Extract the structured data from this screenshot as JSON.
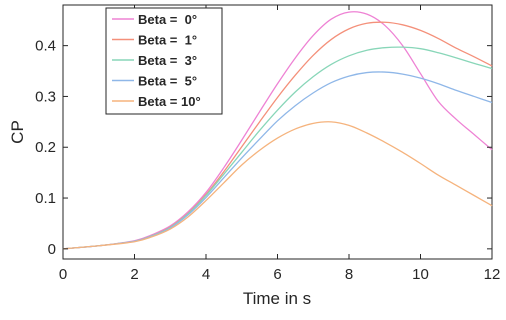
{
  "chart_data": {
    "type": "line",
    "title": "",
    "xlabel": "Time in s",
    "ylabel": "CP",
    "xlim": [
      0,
      12
    ],
    "ylim": [
      -0.02,
      0.48
    ],
    "xticks": [
      0,
      2,
      4,
      6,
      8,
      10,
      12
    ],
    "yticks": [
      0,
      0.1,
      0.2,
      0.3,
      0.4
    ],
    "ytick_labels": [
      "0",
      "0.1",
      "0.2",
      "0.3",
      "0.4"
    ],
    "grid": false,
    "legend_position": "top-left",
    "x": [
      0,
      1,
      2,
      2.5,
      3,
      3.5,
      4,
      4.5,
      5,
      5.5,
      6,
      6.5,
      7,
      7.5,
      8,
      8.5,
      9,
      9.5,
      10,
      10.5,
      11,
      11.5,
      12
    ],
    "series": [
      {
        "name": "Beta =  0°",
        "color": "#ee82d4",
        "values": [
          0,
          0.006,
          0.016,
          0.028,
          0.045,
          0.073,
          0.111,
          0.16,
          0.214,
          0.27,
          0.325,
          0.376,
          0.42,
          0.452,
          0.466,
          0.462,
          0.44,
          0.4,
          0.345,
          0.29,
          0.255,
          0.225,
          0.195
        ]
      },
      {
        "name": "Beta =  1°",
        "color": "#f4907a",
        "values": [
          0,
          0.006,
          0.015,
          0.026,
          0.043,
          0.07,
          0.107,
          0.152,
          0.201,
          0.25,
          0.298,
          0.342,
          0.381,
          0.412,
          0.433,
          0.444,
          0.446,
          0.441,
          0.43,
          0.414,
          0.395,
          0.378,
          0.36
        ]
      },
      {
        "name": "Beta =  3°",
        "color": "#88d6b8",
        "values": [
          0,
          0.006,
          0.015,
          0.026,
          0.042,
          0.069,
          0.105,
          0.147,
          0.19,
          0.233,
          0.273,
          0.309,
          0.339,
          0.363,
          0.38,
          0.391,
          0.396,
          0.397,
          0.394,
          0.386,
          0.376,
          0.365,
          0.355
        ]
      },
      {
        "name": "Beta =  5°",
        "color": "#8fb7e8",
        "values": [
          0,
          0.006,
          0.015,
          0.025,
          0.041,
          0.067,
          0.101,
          0.14,
          0.179,
          0.216,
          0.252,
          0.282,
          0.307,
          0.327,
          0.34,
          0.347,
          0.348,
          0.344,
          0.336,
          0.325,
          0.312,
          0.3,
          0.288
        ]
      },
      {
        "name": "Beta = 10°",
        "color": "#f5b37d",
        "values": [
          0,
          0.006,
          0.014,
          0.024,
          0.039,
          0.063,
          0.095,
          0.13,
          0.165,
          0.194,
          0.218,
          0.236,
          0.247,
          0.25,
          0.243,
          0.228,
          0.21,
          0.19,
          0.168,
          0.145,
          0.125,
          0.105,
          0.085
        ]
      }
    ]
  }
}
